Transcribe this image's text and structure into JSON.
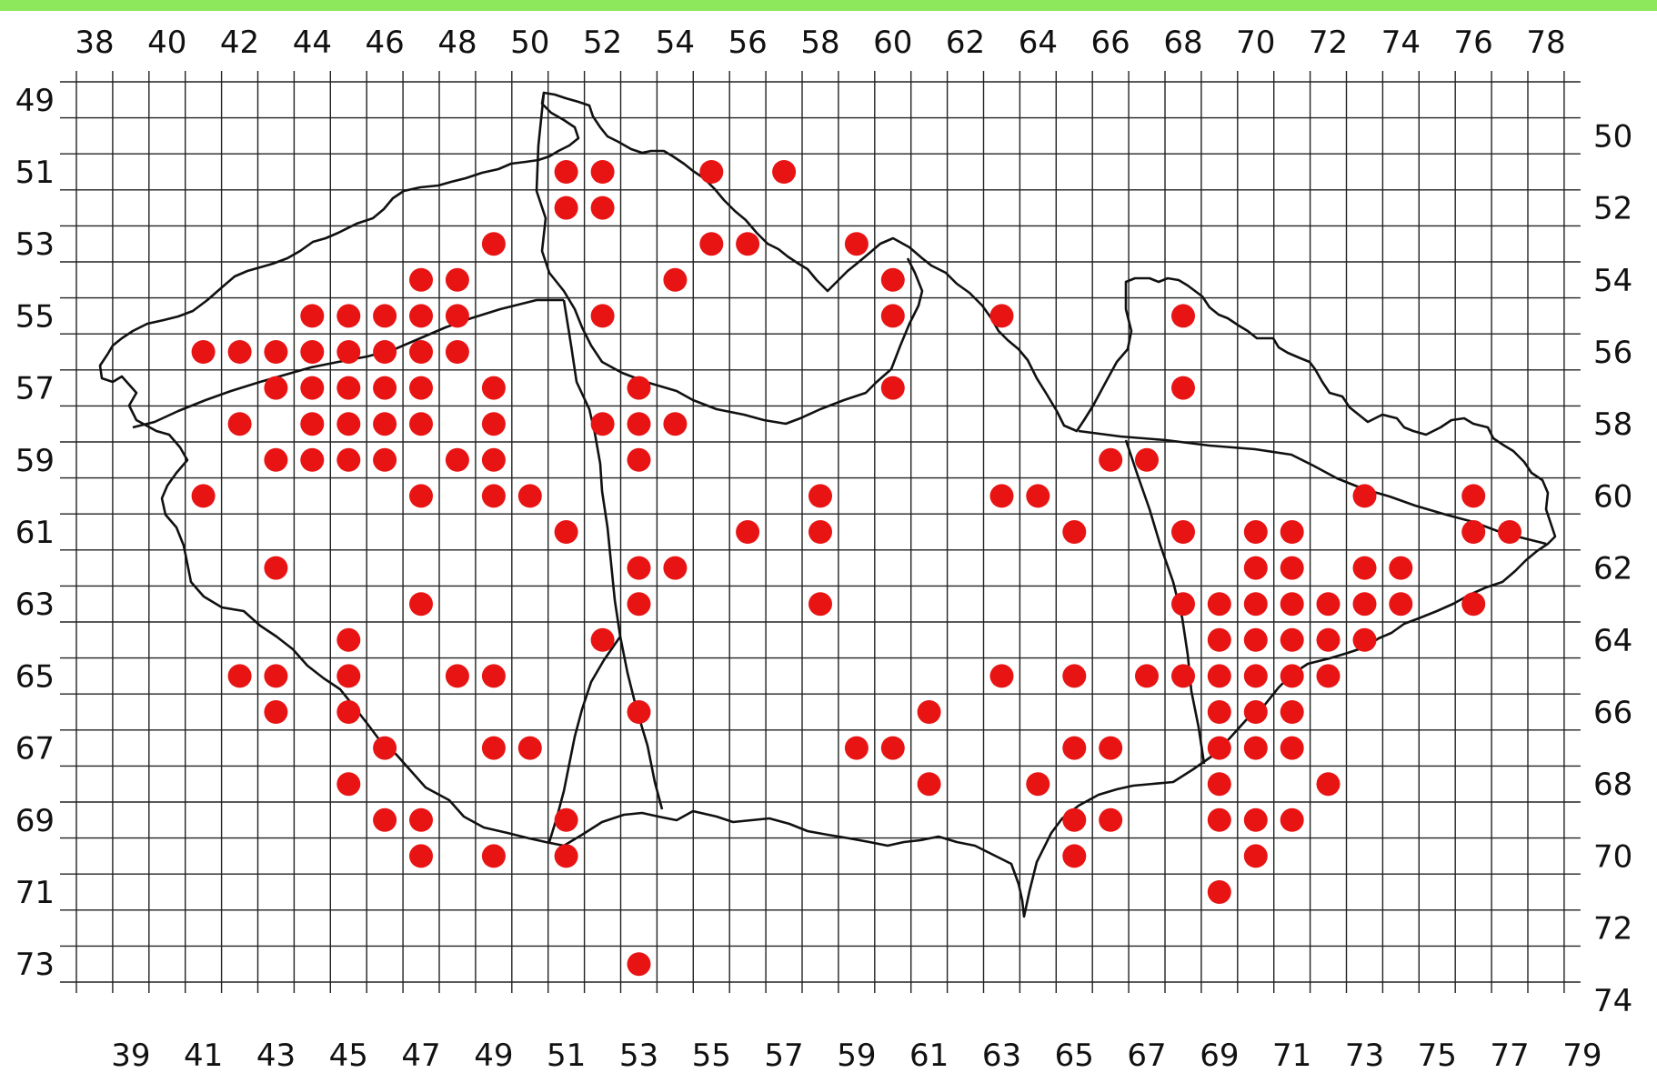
{
  "map": {
    "columns": [
      38,
      39,
      40,
      41,
      42,
      43,
      44,
      45,
      46,
      47,
      48,
      49,
      50,
      51,
      52,
      53,
      54,
      55,
      56,
      57,
      58,
      59,
      60,
      61,
      62,
      63,
      64,
      65,
      66,
      67,
      68,
      69,
      70,
      71,
      72,
      73,
      74,
      75,
      76,
      77,
      78,
      79
    ],
    "rows": [
      49,
      50,
      51,
      52,
      53,
      54,
      55,
      56,
      57,
      58,
      59,
      60,
      61,
      62,
      63,
      64,
      65,
      66,
      67,
      68,
      69,
      70,
      71,
      72,
      73,
      74
    ],
    "top_labels": [
      "38",
      "40",
      "42",
      "44",
      "46",
      "48",
      "50",
      "52",
      "54",
      "56",
      "58",
      "60",
      "62",
      "64",
      "66",
      "68",
      "70",
      "72",
      "74",
      "76",
      "78"
    ],
    "bottom_labels": [
      "39",
      "41",
      "43",
      "45",
      "47",
      "49",
      "51",
      "53",
      "55",
      "57",
      "59",
      "61",
      "63",
      "65",
      "67",
      "69",
      "71",
      "73",
      "75",
      "77",
      "79"
    ],
    "left_labels": [
      "49",
      "51",
      "53",
      "55",
      "57",
      "59",
      "61",
      "63",
      "65",
      "67",
      "69",
      "71",
      "73"
    ],
    "right_labels": [
      "50",
      "52",
      "54",
      "56",
      "58",
      "60",
      "62",
      "64",
      "66",
      "68",
      "70",
      "72",
      "74"
    ],
    "colors": {
      "marker": "#e81414",
      "grid": "#222222",
      "border": "#111111",
      "top_bar": "#8ee85c"
    },
    "occurrences": [
      [
        51,
        51
      ],
      [
        52,
        51
      ],
      [
        55,
        51
      ],
      [
        57,
        51
      ],
      [
        51,
        52
      ],
      [
        52,
        52
      ],
      [
        49,
        53
      ],
      [
        55,
        53
      ],
      [
        56,
        53
      ],
      [
        59,
        53
      ],
      [
        47,
        54
      ],
      [
        48,
        54
      ],
      [
        54,
        54
      ],
      [
        60,
        54
      ],
      [
        44,
        55
      ],
      [
        45,
        55
      ],
      [
        46,
        55
      ],
      [
        47,
        55
      ],
      [
        48,
        55
      ],
      [
        52,
        55
      ],
      [
        60,
        55
      ],
      [
        63,
        55
      ],
      [
        68,
        55
      ],
      [
        41,
        56
      ],
      [
        42,
        56
      ],
      [
        43,
        56
      ],
      [
        44,
        56
      ],
      [
        45,
        56
      ],
      [
        46,
        56
      ],
      [
        47,
        56
      ],
      [
        48,
        56
      ],
      [
        43,
        57
      ],
      [
        44,
        57
      ],
      [
        45,
        57
      ],
      [
        46,
        57
      ],
      [
        47,
        57
      ],
      [
        49,
        57
      ],
      [
        53,
        57
      ],
      [
        60,
        57
      ],
      [
        68,
        57
      ],
      [
        42,
        58
      ],
      [
        44,
        58
      ],
      [
        45,
        58
      ],
      [
        46,
        58
      ],
      [
        47,
        58
      ],
      [
        49,
        58
      ],
      [
        52,
        58
      ],
      [
        53,
        58
      ],
      [
        54,
        58
      ],
      [
        43,
        59
      ],
      [
        44,
        59
      ],
      [
        45,
        59
      ],
      [
        46,
        59
      ],
      [
        48,
        59
      ],
      [
        49,
        59
      ],
      [
        53,
        59
      ],
      [
        66,
        59
      ],
      [
        67,
        59
      ],
      [
        41,
        60
      ],
      [
        47,
        60
      ],
      [
        49,
        60
      ],
      [
        50,
        60
      ],
      [
        58,
        60
      ],
      [
        63,
        60
      ],
      [
        64,
        60
      ],
      [
        73,
        60
      ],
      [
        76,
        60
      ],
      [
        51,
        61
      ],
      [
        56,
        61
      ],
      [
        58,
        61
      ],
      [
        65,
        61
      ],
      [
        68,
        61
      ],
      [
        70,
        61
      ],
      [
        71,
        61
      ],
      [
        76,
        61
      ],
      [
        77,
        61
      ],
      [
        43,
        62
      ],
      [
        53,
        62
      ],
      [
        54,
        62
      ],
      [
        70,
        62
      ],
      [
        71,
        62
      ],
      [
        73,
        62
      ],
      [
        74,
        62
      ],
      [
        47,
        63
      ],
      [
        53,
        63
      ],
      [
        58,
        63
      ],
      [
        68,
        63
      ],
      [
        69,
        63
      ],
      [
        70,
        63
      ],
      [
        71,
        63
      ],
      [
        72,
        63
      ],
      [
        73,
        63
      ],
      [
        74,
        63
      ],
      [
        76,
        63
      ],
      [
        45,
        64
      ],
      [
        52,
        64
      ],
      [
        69,
        64
      ],
      [
        70,
        64
      ],
      [
        71,
        64
      ],
      [
        72,
        64
      ],
      [
        73,
        64
      ],
      [
        42,
        65
      ],
      [
        43,
        65
      ],
      [
        45,
        65
      ],
      [
        48,
        65
      ],
      [
        49,
        65
      ],
      [
        63,
        65
      ],
      [
        65,
        65
      ],
      [
        67,
        65
      ],
      [
        68,
        65
      ],
      [
        69,
        65
      ],
      [
        70,
        65
      ],
      [
        71,
        65
      ],
      [
        72,
        65
      ],
      [
        43,
        66
      ],
      [
        45,
        66
      ],
      [
        53,
        66
      ],
      [
        61,
        66
      ],
      [
        69,
        66
      ],
      [
        70,
        66
      ],
      [
        71,
        66
      ],
      [
        46,
        67
      ],
      [
        49,
        67
      ],
      [
        50,
        67
      ],
      [
        59,
        67
      ],
      [
        60,
        67
      ],
      [
        65,
        67
      ],
      [
        66,
        67
      ],
      [
        69,
        67
      ],
      [
        70,
        67
      ],
      [
        71,
        67
      ],
      [
        45,
        68
      ],
      [
        61,
        68
      ],
      [
        64,
        68
      ],
      [
        69,
        68
      ],
      [
        72,
        68
      ],
      [
        46,
        69
      ],
      [
        47,
        69
      ],
      [
        51,
        69
      ],
      [
        65,
        69
      ],
      [
        66,
        69
      ],
      [
        69,
        69
      ],
      [
        70,
        69
      ],
      [
        71,
        69
      ],
      [
        47,
        70
      ],
      [
        49,
        70
      ],
      [
        51,
        70
      ],
      [
        65,
        70
      ],
      [
        70,
        70
      ],
      [
        69,
        71
      ],
      [
        53,
        73
      ]
    ]
  }
}
